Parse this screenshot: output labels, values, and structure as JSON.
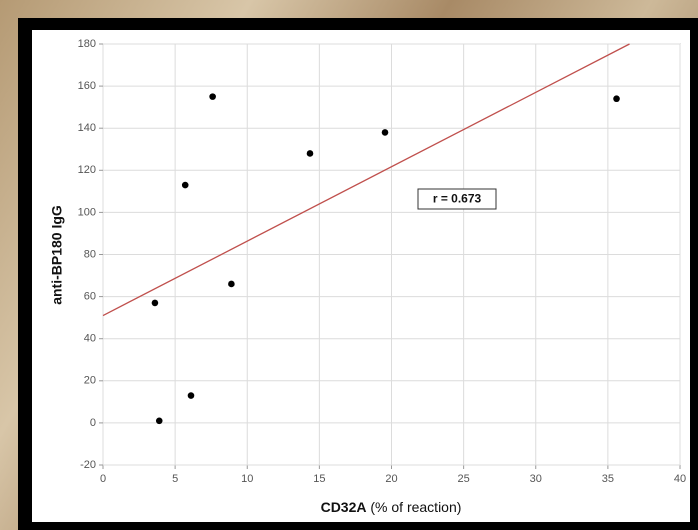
{
  "chart_data": {
    "type": "scatter",
    "x_label_bold": "CD32A",
    "x_label_rest": "(% of reaction)",
    "y_label": "anti-BP180 IgG",
    "annotation": "r = 0.673",
    "x": [
      3.6,
      3.9,
      5.7,
      6.1,
      7.6,
      8.9,
      14.35,
      19.55,
      35.6
    ],
    "values": [
      57,
      1,
      113,
      13,
      155,
      66,
      128,
      138,
      154
    ],
    "color": "#000000",
    "trendline": {
      "x": [
        0,
        36.5
      ],
      "y": [
        51,
        180
      ],
      "color": "#c0504d"
    },
    "xlim": [
      0,
      40
    ],
    "xticks": [
      0,
      5,
      10,
      15,
      20,
      25,
      30,
      35,
      40
    ],
    "ylim": [
      -20,
      180
    ],
    "yticks": [
      -20,
      0,
      20,
      40,
      60,
      80,
      100,
      120,
      140,
      160,
      180
    ],
    "grid": true
  }
}
